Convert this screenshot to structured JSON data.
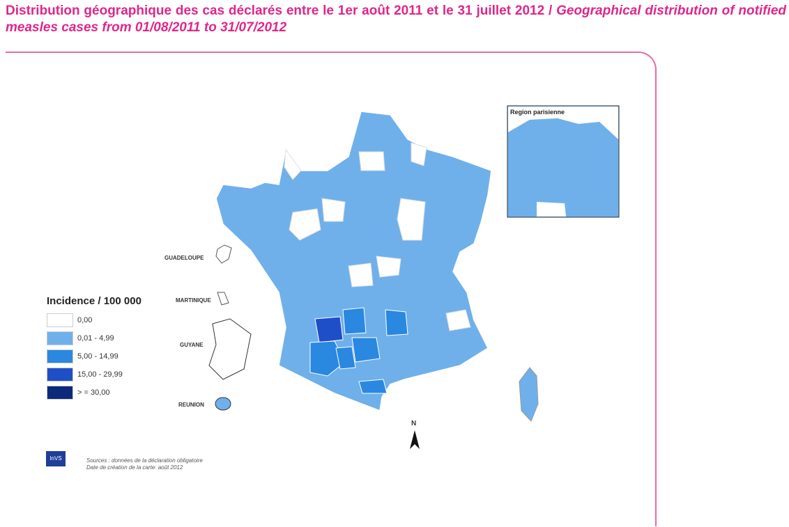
{
  "title": {
    "fr": "Distribution géographique des cas déclarés entre le 1er août 2011 et le 31 juillet 2012 /",
    "en": "Geographical distribution of notified measles cases from 01/08/2011 to 31/07/2012"
  },
  "inset": {
    "title": "Region parisienne"
  },
  "territories": {
    "guadeloupe": "GUADELOUPE",
    "martinique": "MARTINIQUE",
    "guyane": "GUYANE",
    "reunion": "REUNION"
  },
  "legend": {
    "title": "Incidence / 100 000",
    "items": [
      {
        "label": "0,00",
        "color": "#ffffff"
      },
      {
        "label": "0,01 - 4,99",
        "color": "#6fb0ea"
      },
      {
        "label": "5,00 - 14,99",
        "color": "#2a88e0"
      },
      {
        "label": "15,00 - 29,99",
        "color": "#1f4fc8"
      },
      {
        "label": "> = 30,00",
        "color": "#0b2a7a"
      }
    ]
  },
  "north": "N",
  "logo": "InVS",
  "sources": {
    "line1": "Sources : données de la déclaration obligatoire",
    "line2": "Date de création de la carte: août 2012"
  }
}
